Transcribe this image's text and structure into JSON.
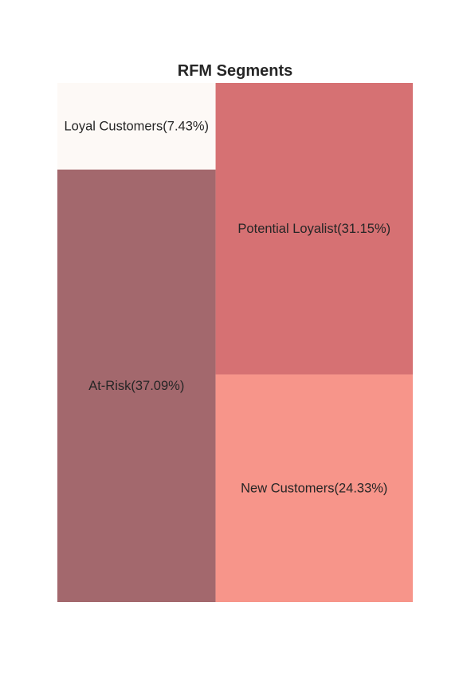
{
  "chart_data": {
    "type": "treemap",
    "title": "RFM Segments",
    "xlabel": "",
    "ylabel": "",
    "grid": false,
    "legend": "none",
    "segments": [
      {
        "name": "At-Risk",
        "label": "At-Risk(37.09%)",
        "percent": 37.09,
        "color": "#a3686d"
      },
      {
        "name": "Loyal Customers",
        "label": "Loyal Customers(7.43%)",
        "percent": 7.43,
        "color": "#fdf9f6"
      },
      {
        "name": "Potential Loyalist",
        "label": "Potential Loyalist(31.15%)",
        "percent": 31.15,
        "color": "#d67173"
      },
      {
        "name": "New Customers",
        "label": "New Customers(24.33%)",
        "percent": 24.33,
        "color": "#f7958a"
      }
    ]
  }
}
